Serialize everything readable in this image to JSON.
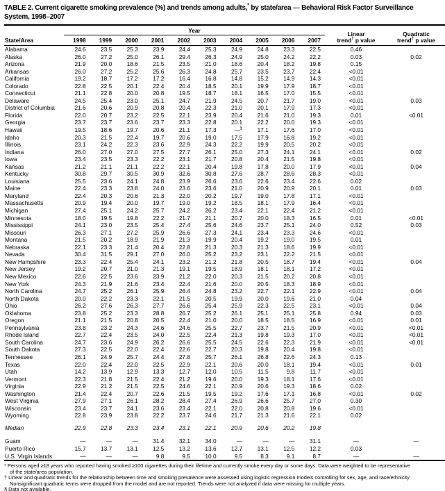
{
  "title_line1": "TABLE 2. Current cigarette smoking prevalence (%) and trends among adults,* by state/area — Behavioral Risk Factor Surveillance",
  "title_line2": "System, 1998–2007",
  "table": {
    "group_header": "Year",
    "col_state": "State/Area",
    "years": [
      "1998",
      "1999",
      "2000",
      "2001",
      "2002",
      "2003",
      "2004",
      "2005",
      "2006",
      "2007"
    ],
    "col_linear_line1": "Linear",
    "col_linear_line2": "trend† p value",
    "col_quadratic_line1": "Quadratic",
    "col_quadratic_line2": "trend† p value",
    "rows": [
      {
        "area": "Alabama",
        "values": [
          "24.6",
          "23.5",
          "25.3",
          "23.9",
          "24.4",
          "25.3",
          "24.9",
          "24.8",
          "23.3",
          "22.5"
        ],
        "linear": "0.46",
        "quad": ""
      },
      {
        "area": "Alaska",
        "values": [
          "26.0",
          "27.2",
          "25.0",
          "26.1",
          "29.4",
          "26.3",
          "24.9",
          "25.0",
          "24.2",
          "22.2"
        ],
        "linear": "0.03",
        "quad": "0.02"
      },
      {
        "area": "Arizona",
        "values": [
          "21.9",
          "20.0",
          "18.6",
          "21.5",
          "23.5",
          "21.0",
          "18.6",
          "20.4",
          "18.2",
          "19.8"
        ],
        "linear": "0.15",
        "quad": ""
      },
      {
        "area": "Arkansas",
        "values": [
          "26.0",
          "27.2",
          "25.2",
          "25.6",
          "26.3",
          "24.8",
          "25.7",
          "23.5",
          "23.7",
          "22.4"
        ],
        "linear": "<0.01",
        "quad": ""
      },
      {
        "area": "California",
        "values": [
          "19.2",
          "18.7",
          "17.2",
          "17.2",
          "16.4",
          "16.8",
          "14.8",
          "15.2",
          "14.9",
          "14.3"
        ],
        "linear": "<0.01",
        "quad": ""
      },
      {
        "area": "Colorado",
        "values": [
          "22.8",
          "22.5",
          "20.1",
          "22.4",
          "20.4",
          "18.5",
          "20.1",
          "19.9",
          "17.9",
          "18.7"
        ],
        "linear": "<0.01",
        "quad": ""
      },
      {
        "area": "Connecticut",
        "values": [
          "21.1",
          "22.8",
          "20.0",
          "20.8",
          "19.5",
          "18.7",
          "18.1",
          "16.5",
          "17.0",
          "15.5"
        ],
        "linear": "<0.01",
        "quad": ""
      },
      {
        "area": "Delaware",
        "values": [
          "24.5",
          "25.4",
          "23.0",
          "25.1",
          "24.7",
          "21.9",
          "24.5",
          "20.7",
          "21.7",
          "19.0"
        ],
        "linear": "<0.01",
        "quad": "0.03"
      },
      {
        "area": "District of Columbia",
        "values": [
          "21.6",
          "20.6",
          "20.9",
          "20.8",
          "20.4",
          "22.3",
          "21.0",
          "20.1",
          "17.9",
          "17.3"
        ],
        "linear": "<0.01",
        "quad": ""
      },
      {
        "area": "Florida",
        "values": [
          "22.0",
          "20.7",
          "23.2",
          "22.5",
          "22.1",
          "23.9",
          "20.4",
          "21.6",
          "21.0",
          "19.3"
        ],
        "linear": "0.01",
        "quad": "<0.01"
      },
      {
        "area": "Georgia",
        "values": [
          "23.7",
          "23.7",
          "23.6",
          "23.7",
          "23.3",
          "22.8",
          "20.1",
          "22.2",
          "20.0",
          "19.3"
        ],
        "linear": "<0.01",
        "quad": ""
      },
      {
        "area": "Hawaii",
        "values": [
          "19.5",
          "18.6",
          "19.7",
          "20.6",
          "21.1",
          "17.3",
          "—§",
          "17.1",
          "17.6",
          "17.0"
        ],
        "linear": "<0.01",
        "quad": ""
      },
      {
        "area": "Idaho",
        "values": [
          "20.3",
          "21.5",
          "22.4",
          "19.7",
          "20.6",
          "19.0",
          "17.5",
          "17.9",
          "16.8",
          "19.2"
        ],
        "linear": "<0.01",
        "quad": ""
      },
      {
        "area": "Illinois",
        "values": [
          "23.1",
          "24.2",
          "22.3",
          "23.6",
          "22.9",
          "24.3",
          "22.2",
          "19.9",
          "20.5",
          "20.2"
        ],
        "linear": "<0.01",
        "quad": ""
      },
      {
        "area": "Indiana",
        "values": [
          "26.0",
          "27.0",
          "27.0",
          "27.5",
          "27.7",
          "26.1",
          "25.0",
          "27.3",
          "24.1",
          "24.1"
        ],
        "linear": "<0.01",
        "quad": "0.02"
      },
      {
        "area": "Iowa",
        "values": [
          "23.4",
          "23.5",
          "23.3",
          "22.2",
          "23.1",
          "21.7",
          "20.8",
          "20.4",
          "21.5",
          "19.8"
        ],
        "linear": "<0.01",
        "quad": ""
      },
      {
        "area": "Kansas",
        "values": [
          "21.2",
          "21.1",
          "21.1",
          "22.2",
          "22.1",
          "20.4",
          "19.8",
          "17.8",
          "20.0",
          "17.9"
        ],
        "linear": "<0.01",
        "quad": "0.04"
      },
      {
        "area": "Kentucky",
        "values": [
          "30.8",
          "29.7",
          "30.5",
          "30.9",
          "32.6",
          "30.8",
          "27.6",
          "28.7",
          "28.6",
          "28.3"
        ],
        "linear": "<0.01",
        "quad": ""
      },
      {
        "area": "Louisiana",
        "values": [
          "25.5",
          "23.6",
          "24.1",
          "24.8",
          "23.9",
          "26.6",
          "23.6",
          "22.6",
          "23.4",
          "22.6"
        ],
        "linear": "0.02",
        "quad": ""
      },
      {
        "area": "Maine",
        "values": [
          "22.4",
          "23.3",
          "23.8",
          "24.0",
          "23.6",
          "23.6",
          "21.0",
          "20.9",
          "20.9",
          "20.1"
        ],
        "linear": "0.01",
        "quad": "0.03"
      },
      {
        "area": "Maryland",
        "values": [
          "22.4",
          "20.3",
          "20.6",
          "21.3",
          "22.0",
          "20.2",
          "19.7",
          "19.0",
          "17.8",
          "17.1"
        ],
        "linear": "<0.01",
        "quad": ""
      },
      {
        "area": "Massachusetts",
        "values": [
          "20.9",
          "19.4",
          "20.0",
          "19.7",
          "19.0",
          "19.2",
          "18.5",
          "18.1",
          "17.9",
          "16.4"
        ],
        "linear": "<0.01",
        "quad": ""
      },
      {
        "area": "Michigan",
        "values": [
          "27.4",
          "25.1",
          "24.2",
          "25.7",
          "24.2",
          "26.2",
          "23.4",
          "22.1",
          "22.4",
          "21.2"
        ],
        "linear": "<0.01",
        "quad": ""
      },
      {
        "area": "Minnesota",
        "values": [
          "18.0",
          "19.5",
          "19.8",
          "22.2",
          "21.7",
          "21.1",
          "20.7",
          "20.0",
          "18.3",
          "16.5"
        ],
        "linear": "0.01",
        "quad": "<0.01"
      },
      {
        "area": "Mississippi",
        "values": [
          "24.1",
          "23.0",
          "23.5",
          "25.4",
          "27.4",
          "25.6",
          "24.6",
          "23.7",
          "25.1",
          "24.0"
        ],
        "linear": "0.52",
        "quad": "0.03"
      },
      {
        "area": "Missouri",
        "values": [
          "26.3",
          "27.1",
          "27.2",
          "25.9",
          "26.6",
          "27.3",
          "24.1",
          "23.4",
          "23.3",
          "24.6"
        ],
        "linear": "<0.01",
        "quad": ""
      },
      {
        "area": "Montana",
        "values": [
          "21.5",
          "20.2",
          "18.9",
          "21.9",
          "21.3",
          "19.9",
          "20.4",
          "19.2",
          "19.0",
          "19.5"
        ],
        "linear": "0.01",
        "quad": ""
      },
      {
        "area": "Nebraska",
        "values": [
          "22.1",
          "23.3",
          "21.4",
          "20.4",
          "22.8",
          "21.3",
          "20.3",
          "21.3",
          "18.6",
          "19.9"
        ],
        "linear": "<0.01",
        "quad": ""
      },
      {
        "area": "Nevada",
        "values": [
          "30.4",
          "31.5",
          "29.1",
          "27.0",
          "26.0",
          "25.2",
          "23.2",
          "23.1",
          "22.2",
          "21.5"
        ],
        "linear": "<0.01",
        "quad": ""
      },
      {
        "area": "New Hampshire",
        "values": [
          "23.3",
          "22.4",
          "25.4",
          "24.1",
          "23.2",
          "21.2",
          "21.8",
          "20.5",
          "18.7",
          "19.4"
        ],
        "linear": "<0.01",
        "quad": "0.04"
      },
      {
        "area": "New Jersey",
        "values": [
          "19.2",
          "20.7",
          "21.0",
          "21.3",
          "19.1",
          "19.5",
          "18.9",
          "18.1",
          "18.1",
          "17.2"
        ],
        "linear": "<0.01",
        "quad": ""
      },
      {
        "area": "New Mexico",
        "values": [
          "22.6",
          "22.5",
          "23.6",
          "23.9",
          "21.2",
          "22.0",
          "20.3",
          "21.5",
          "20.2",
          "20.8"
        ],
        "linear": "<0.01",
        "quad": ""
      },
      {
        "area": "New York",
        "values": [
          "24.3",
          "21.9",
          "21.6",
          "23.4",
          "22.4",
          "21.6",
          "20.0",
          "20.5",
          "18.3",
          "18.9"
        ],
        "linear": "<0.01",
        "quad": ""
      },
      {
        "area": "North Carolina",
        "values": [
          "24.7",
          "25.2",
          "26.1",
          "25.9",
          "26.4",
          "24.8",
          "23.2",
          "22.7",
          "22.1",
          "22.9"
        ],
        "linear": "<0.01",
        "quad": "0.04"
      },
      {
        "area": "North Dakota",
        "values": [
          "20.0",
          "22.2",
          "23.3",
          "22.1",
          "21.5",
          "20.5",
          "19.9",
          "20.0",
          "19.6",
          "21.0"
        ],
        "linear": "0.04",
        "quad": ""
      },
      {
        "area": "Ohio",
        "values": [
          "26.2",
          "27.6",
          "26.3",
          "27.7",
          "26.6",
          "25.4",
          "25.9",
          "22.3",
          "22.5",
          "23.1"
        ],
        "linear": "<0.01",
        "quad": "0.04"
      },
      {
        "area": "Oklahoma",
        "values": [
          "23.8",
          "25.2",
          "23.3",
          "28.8",
          "26.7",
          "25.2",
          "26.1",
          "25.1",
          "25.1",
          "25.8"
        ],
        "linear": "0.94",
        "quad": "0.03"
      },
      {
        "area": "Oregon",
        "values": [
          "21.1",
          "21.5",
          "20.8",
          "20.5",
          "22.4",
          "21.0",
          "20.0",
          "18.5",
          "18.5",
          "16.9"
        ],
        "linear": "<0.01",
        "quad": "0.01"
      },
      {
        "area": "Pennsylvania",
        "values": [
          "23.8",
          "23.2",
          "24.3",
          "24.6",
          "24.6",
          "25.5",
          "22.7",
          "23.7",
          "21.5",
          "20.9"
        ],
        "linear": "<0.01",
        "quad": "<0.01"
      },
      {
        "area": "Rhode Island",
        "values": [
          "22.7",
          "22.4",
          "23.5",
          "24.0",
          "22.5",
          "22.4",
          "21.3",
          "19.8",
          "19.3",
          "17.0"
        ],
        "linear": "<0.01",
        "quad": "<0.01"
      },
      {
        "area": "South Carolina",
        "values": [
          "24.7",
          "23.6",
          "24.9",
          "26.2",
          "26.6",
          "25.5",
          "24.5",
          "22.6",
          "22.3",
          "21.9"
        ],
        "linear": "<0.01",
        "quad": "<0.01"
      },
      {
        "area": "South Dakota",
        "values": [
          "27.3",
          "22.5",
          "22.0",
          "22.4",
          "22.6",
          "22.7",
          "20.3",
          "19.8",
          "20.4",
          "19.8"
        ],
        "linear": "<0.01",
        "quad": ""
      },
      {
        "area": "Tennessee",
        "values": [
          "26.1",
          "24.9",
          "25.7",
          "24.4",
          "27.8",
          "25.7",
          "26.1",
          "26.8",
          "22.6",
          "24.3"
        ],
        "linear": "0.13",
        "quad": ""
      },
      {
        "area": "Texas",
        "values": [
          "22.0",
          "22.4",
          "22.0",
          "22.5",
          "22.9",
          "22.1",
          "20.6",
          "20.0",
          "18.1",
          "19.4"
        ],
        "linear": "<0.01",
        "quad": "0.01"
      },
      {
        "area": "Utah",
        "values": [
          "14.2",
          "13.9",
          "12.9",
          "13.3",
          "12.7",
          "12.0",
          "10.5",
          "11.5",
          "9.8",
          "11.7"
        ],
        "linear": "<0.01",
        "quad": ""
      },
      {
        "area": "Vermont",
        "values": [
          "22.3",
          "21.8",
          "21.5",
          "22.4",
          "21.2",
          "19.6",
          "20.0",
          "19.3",
          "18.1",
          "17.6"
        ],
        "linear": "<0.01",
        "quad": ""
      },
      {
        "area": "Virginia",
        "values": [
          "22.9",
          "21.2",
          "21.5",
          "22.5",
          "24.6",
          "22.1",
          "20.9",
          "20.6",
          "19.3",
          "18.6"
        ],
        "linear": "0.02",
        "quad": ""
      },
      {
        "area": "Washington",
        "values": [
          "21.4",
          "22.4",
          "20.7",
          "22.6",
          "21.5",
          "19.5",
          "19.2",
          "17.6",
          "17.1",
          "16.8"
        ],
        "linear": "<0.01",
        "quad": "0.02"
      },
      {
        "area": "West Virginia",
        "values": [
          "27.9",
          "27.1",
          "26.1",
          "28.2",
          "28.4",
          "27.4",
          "26.9",
          "26.6",
          "25.7",
          "27.0"
        ],
        "linear": "0.30",
        "quad": ""
      },
      {
        "area": "Wisconsin",
        "values": [
          "23.4",
          "23.7",
          "24.1",
          "23.6",
          "23.4",
          "22.1",
          "22.0",
          "20.8",
          "20.8",
          "19.6"
        ],
        "linear": "<0.01",
        "quad": ""
      },
      {
        "area": "Wyoming",
        "values": [
          "22.8",
          "23.9",
          "23.8",
          "22.2",
          "23.7",
          "24.6",
          "21.7",
          "21.3",
          "21.6",
          "22.1"
        ],
        "linear": "0.02",
        "quad": ""
      },
      {
        "area": "Median",
        "values": [
          "22.9",
          "22.8",
          "23.3",
          "23.4",
          "23.1",
          "22.1",
          "20.9",
          "20.6",
          "20.2",
          "19.8"
        ],
        "linear": "",
        "quad": "",
        "italic": true,
        "gap": true
      },
      {
        "area": "Guam",
        "values": [
          "—",
          "—",
          "—",
          "31.4",
          "32.1",
          "34.0",
          "—",
          "—",
          "—",
          "31.1"
        ],
        "linear": "—",
        "quad": "—",
        "gap": true
      },
      {
        "area": "Puerto Rico",
        "values": [
          "15.7",
          "13.7",
          "13.1",
          "12.5",
          "13.2",
          "13.6",
          "12.7",
          "13.1",
          "12.5",
          "12.2"
        ],
        "linear": "0.03",
        "quad": ""
      },
      {
        "area": "U.S. Virgin Islands",
        "values": [
          "—",
          "—",
          "—",
          "9.8",
          "9.5",
          "10.0",
          "9.5",
          "8.3",
          "9.1",
          "8.7"
        ],
        "linear": "—",
        "quad": "—"
      }
    ]
  },
  "footnotes": [
    {
      "lines": [
        "* Persons aged ≥18 years who reported having smoked ≥100 cigarettes during their lifetime and currently smoke every day or some days. Data were weighted to be representative",
        "of the state/area population."
      ]
    },
    {
      "lines": [
        "† Linear and quadratic trends for the relationship between time and smoking prevalence were assessed using logistic regression models controlling for sex, age, and race/ethnicity.",
        "Nonsignificant quadratic terms were dropped from the model and are not reported. Trends were not analyzed if data were missing for multiple years."
      ]
    },
    {
      "lines": [
        "§ Data not available."
      ]
    }
  ]
}
